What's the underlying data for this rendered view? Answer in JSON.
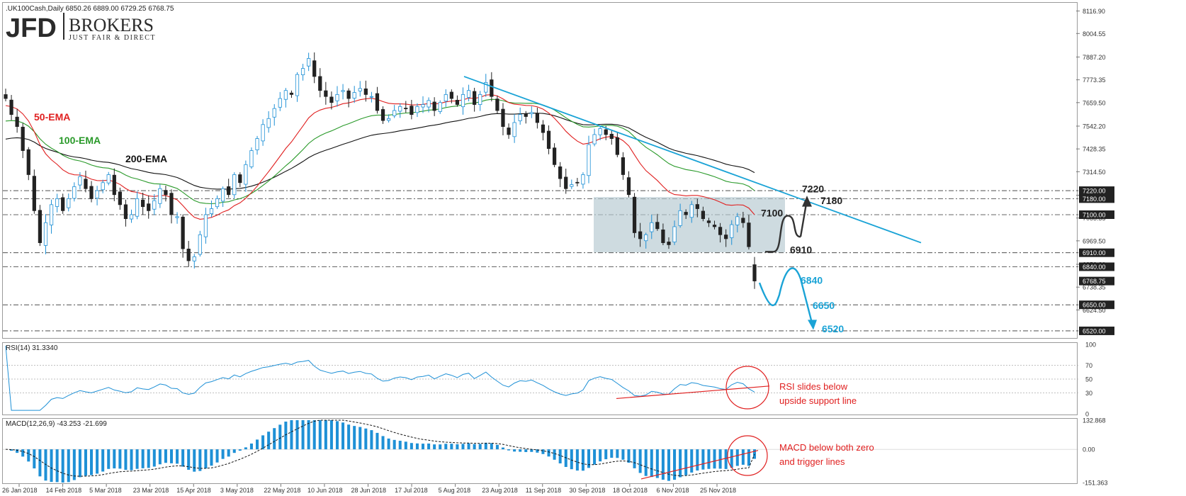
{
  "header": {
    "symbol_line": ".UK100Cash,Daily  6850.26 6889.00 6729.25 6768.75"
  },
  "logo": {
    "main": "JFD",
    "brokers": "BROKERS",
    "tagline": "JUST FAIR & DIRECT"
  },
  "colors": {
    "bull": "#1e90d6",
    "bear": "#222222",
    "ema50": "#e02020",
    "ema100": "#2a9a2a",
    "ema200": "#111111",
    "trend": "#1aa3d6",
    "box": "#b4c8d0",
    "annotation": "#e02020"
  },
  "chart_data": [
    {
      "type": "candlestick",
      "instrument": ".UK100Cash",
      "timeframe": "Daily",
      "last_ohlc": {
        "open": 6850.26,
        "high": 6889.0,
        "low": 6729.25,
        "close": 6768.75
      },
      "ylim": [
        6520,
        8116
      ],
      "y_ticks": [
        8116.9,
        8004.55,
        7887.2,
        7773.35,
        7659.5,
        7542.2,
        7428.35,
        7314.5,
        7197.2,
        7083.35,
        6969.5,
        6852.2,
        6738.35,
        6624.5
      ],
      "x_labels": [
        "26 Jan 2018",
        "14 Feb 2018",
        "5 Mar 2018",
        "23 Mar 2018",
        "15 Apr 2018",
        "3 May 2018",
        "22 May 2018",
        "10 Jun 2018",
        "28 Jun 2018",
        "17 Jul 2018",
        "5 Aug 2018",
        "23 Aug 2018",
        "11 Sep 2018",
        "30 Sep 2018",
        "18 Oct 2018",
        "6 Nov 2018",
        "25 Nov 2018"
      ],
      "closes": [
        7680,
        7600,
        7540,
        7420,
        7300,
        7120,
        6960,
        7060,
        7150,
        7180,
        7120,
        7180,
        7240,
        7290,
        7230,
        7180,
        7220,
        7260,
        7300,
        7200,
        7150,
        7080,
        7100,
        7180,
        7140,
        7120,
        7170,
        7230,
        7200,
        7100,
        7090,
        6930,
        6870,
        6890,
        7000,
        7100,
        7130,
        7180,
        7230,
        7200,
        7300,
        7260,
        7350,
        7420,
        7480,
        7550,
        7580,
        7630,
        7680,
        7720,
        7700,
        7800,
        7830,
        7880,
        7790,
        7720,
        7690,
        7660,
        7700,
        7720,
        7680,
        7710,
        7730,
        7700,
        7690,
        7620,
        7570,
        7580,
        7620,
        7640,
        7630,
        7600,
        7640,
        7650,
        7670,
        7620,
        7660,
        7700,
        7680,
        7650,
        7700,
        7720,
        7650,
        7700,
        7760,
        7690,
        7620,
        7540,
        7500,
        7560,
        7600,
        7590,
        7610,
        7560,
        7510,
        7430,
        7350,
        7280,
        7230,
        7250,
        7260,
        7300,
        7450,
        7500,
        7530,
        7500,
        7480,
        7400,
        7300,
        7200,
        7010,
        6980,
        7000,
        7060,
        7030,
        6960,
        6950,
        7040,
        7120,
        7100,
        7150,
        7130,
        7080,
        7060,
        7040,
        7000,
        6980,
        7050,
        7090,
        7060,
        6940,
        6769
      ],
      "ema50_end": 7100,
      "ema100_end": 7220,
      "ema200_end": 7310,
      "horizontal_levels": [
        {
          "label": "7220.00",
          "value": 7220
        },
        {
          "label": "7180.00",
          "value": 7180
        },
        {
          "label": "7100.00",
          "value": 7100
        },
        {
          "label": "6910.00",
          "value": 6910
        },
        {
          "label": "6840.00",
          "value": 6840
        },
        {
          "label": "6768.75",
          "value": 6768.75
        },
        {
          "label": "6650.00",
          "value": 6650
        },
        {
          "label": "6520.00",
          "value": 6520
        }
      ],
      "price_labels": [
        {
          "text": "7220",
          "value": 7220,
          "color": "#222222"
        },
        {
          "text": "7180",
          "value": 7180,
          "color": "#222222"
        },
        {
          "text": "7100",
          "value": 7100,
          "color": "#222222"
        },
        {
          "text": "6910",
          "value": 6910,
          "color": "#222222"
        },
        {
          "text": "6840",
          "value": 6840,
          "color": "#1aa3d6"
        },
        {
          "text": "6650",
          "value": 6650,
          "color": "#1aa3d6"
        },
        {
          "text": "6520",
          "value": 6520,
          "color": "#1aa3d6"
        }
      ],
      "ema_labels": [
        {
          "text": "50-EMA",
          "color": "#e02020"
        },
        {
          "text": "100-EMA",
          "color": "#2a9a2a"
        },
        {
          "text": "200-EMA",
          "color": "#111111"
        }
      ]
    },
    {
      "type": "line",
      "title": "RSI(14) 31.3340",
      "ylim": [
        0,
        100
      ],
      "y_ticks": [
        100,
        70,
        50,
        30,
        0
      ],
      "support_line": [
        22,
        40
      ],
      "annotation": [
        "RSI slides below",
        "upside support line"
      ]
    },
    {
      "type": "bar",
      "title": "MACD(12,26,9) -43.253 -21.699",
      "ylim": [
        -151.363,
        132.868
      ],
      "y_ticks": [
        132.868,
        0.0,
        -151.363
      ],
      "annotation": [
        "MACD below both zero",
        "and trigger lines"
      ]
    }
  ]
}
